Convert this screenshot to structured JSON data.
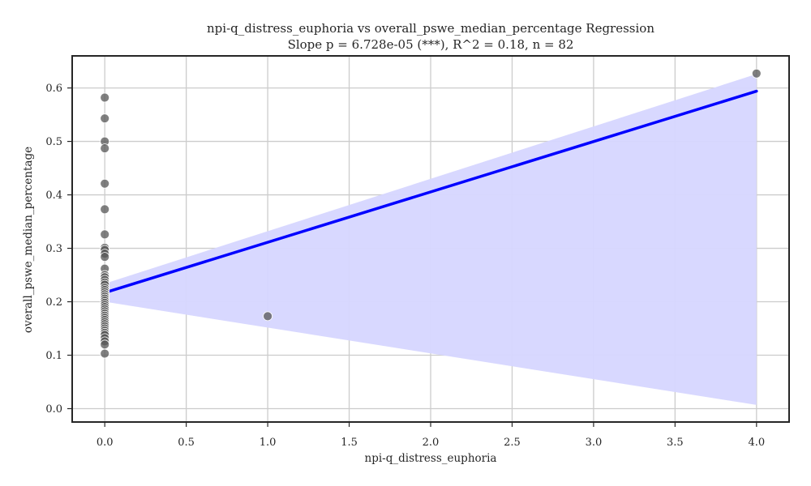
{
  "chart_data": {
    "type": "scatter",
    "title": "npi-q_distress_euphoria vs overall_pswe_median_percentage Regression",
    "subtitle": "Slope p = 6.728e-05 (***), R^2 = 0.18, n = 82",
    "xlabel": "npi-q_distress_euphoria",
    "ylabel": "overall_pswe_median_percentage",
    "xlim": [
      -0.2,
      4.2
    ],
    "ylim": [
      -0.025,
      0.66
    ],
    "xticks": [
      0.0,
      0.5,
      1.0,
      1.5,
      2.0,
      2.5,
      3.0,
      3.5,
      4.0
    ],
    "xtick_labels": [
      "0.0",
      "0.5",
      "1.0",
      "1.5",
      "2.0",
      "2.5",
      "3.0",
      "3.5",
      "4.0"
    ],
    "yticks": [
      0.0,
      0.1,
      0.2,
      0.3,
      0.4,
      0.5,
      0.6
    ],
    "ytick_labels": [
      "0.0",
      "0.1",
      "0.2",
      "0.3",
      "0.4",
      "0.5",
      "0.6"
    ],
    "grid": true,
    "colors": {
      "points": "#555555",
      "point_edge": "#ffffff",
      "regression_line": "#0000ff",
      "confidence_band": "#d6d6ff"
    },
    "points": [
      {
        "x": 0,
        "y": 0.582
      },
      {
        "x": 0,
        "y": 0.543
      },
      {
        "x": 0,
        "y": 0.5
      },
      {
        "x": 0,
        "y": 0.487
      },
      {
        "x": 0,
        "y": 0.421
      },
      {
        "x": 0,
        "y": 0.373
      },
      {
        "x": 0,
        "y": 0.326
      },
      {
        "x": 0,
        "y": 0.301
      },
      {
        "x": 0,
        "y": 0.297
      },
      {
        "x": 0,
        "y": 0.29
      },
      {
        "x": 0,
        "y": 0.284
      },
      {
        "x": 0,
        "y": 0.262
      },
      {
        "x": 0,
        "y": 0.25
      },
      {
        "x": 0,
        "y": 0.246
      },
      {
        "x": 0,
        "y": 0.241
      },
      {
        "x": 0,
        "y": 0.236
      },
      {
        "x": 0,
        "y": 0.232
      },
      {
        "x": 0,
        "y": 0.226
      },
      {
        "x": 0,
        "y": 0.222
      },
      {
        "x": 0,
        "y": 0.218
      },
      {
        "x": 0,
        "y": 0.214
      },
      {
        "x": 0,
        "y": 0.21
      },
      {
        "x": 0,
        "y": 0.206
      },
      {
        "x": 0,
        "y": 0.202
      },
      {
        "x": 0,
        "y": 0.198
      },
      {
        "x": 0,
        "y": 0.194
      },
      {
        "x": 0,
        "y": 0.19
      },
      {
        "x": 0,
        "y": 0.186
      },
      {
        "x": 0,
        "y": 0.182
      },
      {
        "x": 0,
        "y": 0.178
      },
      {
        "x": 0,
        "y": 0.174
      },
      {
        "x": 0,
        "y": 0.17
      },
      {
        "x": 0,
        "y": 0.166
      },
      {
        "x": 0,
        "y": 0.162
      },
      {
        "x": 0,
        "y": 0.158
      },
      {
        "x": 0,
        "y": 0.154
      },
      {
        "x": 0,
        "y": 0.15
      },
      {
        "x": 0,
        "y": 0.146
      },
      {
        "x": 0,
        "y": 0.142
      },
      {
        "x": 0,
        "y": 0.138
      },
      {
        "x": 0,
        "y": 0.132
      },
      {
        "x": 0,
        "y": 0.126
      },
      {
        "x": 0,
        "y": 0.12
      },
      {
        "x": 0,
        "y": 0.103
      },
      {
        "x": 1,
        "y": 0.173
      },
      {
        "x": 4,
        "y": 0.627
      }
    ],
    "regression": {
      "x": [
        0,
        4
      ],
      "y": [
        0.217,
        0.594
      ]
    },
    "confidence_band": {
      "x": [
        0,
        4
      ],
      "upper": [
        0.234,
        0.626
      ],
      "lower": [
        0.2,
        0.007
      ]
    }
  }
}
